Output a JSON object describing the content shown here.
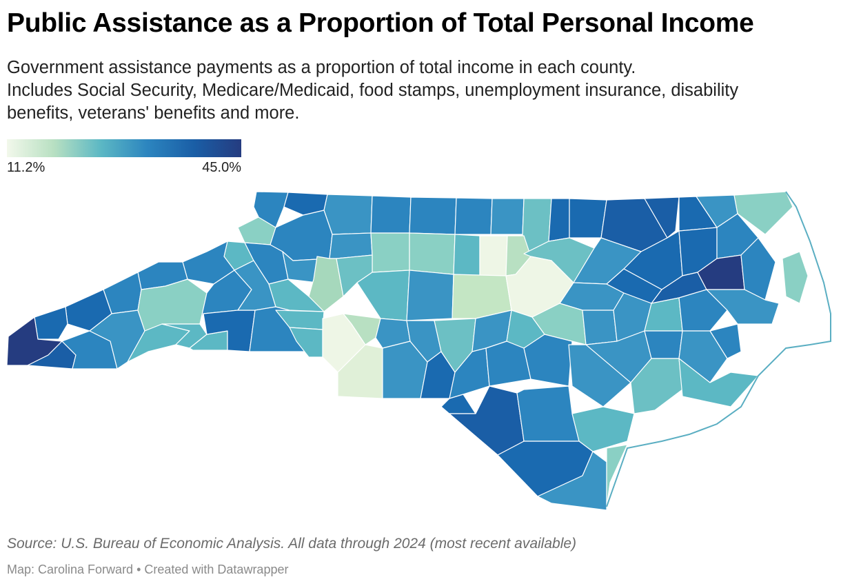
{
  "title": "Public Assistance as a Proportion of Total Personal Income",
  "description": {
    "line1": "Government assistance payments as a proportion of total income in each county.",
    "line2": "Includes Social Security, Medicare/Medicaid, food stamps, unemployment insurance, disability",
    "line3": "benefits, veterans' benefits and more."
  },
  "legend": {
    "min_label": "11.2%",
    "max_label": "45.0%",
    "min_value": 11.2,
    "max_value": 45.0,
    "colors": [
      "#f2f8eb",
      "#b8e0c2",
      "#5cb8c4",
      "#2c85bf",
      "#1a5ea6",
      "#253c80"
    ]
  },
  "source": "Source: U.S. Bureau of Economic Analysis. All data through 2024 (most recent available)",
  "credit": "Map: Carolina Forward • Created with Datawrapper"
}
